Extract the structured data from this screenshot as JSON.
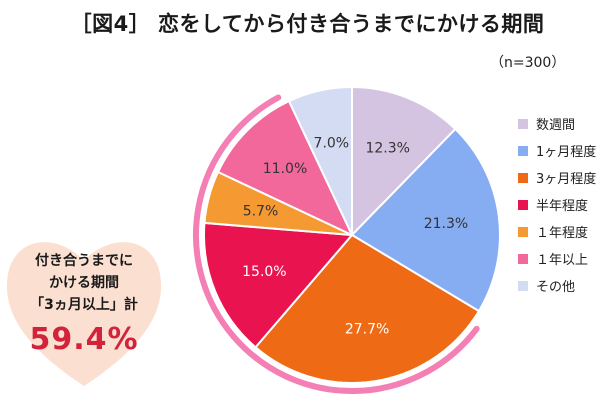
{
  "header": {
    "title": "［図4］ 恋をしてから付き合うまでにかける期間",
    "sample_size": "（n=300）"
  },
  "callout": {
    "line1": "付き合うまでに",
    "line2": "かける期間",
    "line3": "「3ヵ月以上」計",
    "value": "59.4%"
  },
  "chart_data": {
    "type": "pie",
    "title": "［図4］ 恋をしてから付き合うまでにかける期間",
    "start": "12 o'clock",
    "direction": "clockwise",
    "legend_position": "right",
    "categories": [
      "数週間",
      "1ヶ月程度",
      "3ヶ月程度",
      "半年程度",
      "１年程度",
      "１年以上",
      "その他"
    ],
    "values": [
      12.3,
      21.3,
      27.7,
      15.0,
      5.7,
      11.0,
      7.0
    ],
    "labels": [
      "12.3%",
      "21.3%",
      "27.7%",
      "15.0%",
      "5.7%",
      "11.0%",
      "7.0%"
    ],
    "colors": [
      "#d5c3e2",
      "#86acf2",
      "#ef6a14",
      "#e8134f",
      "#f59a32",
      "#f2689a",
      "#d4dcf3"
    ],
    "label_colors": [
      "#333333",
      "#333333",
      "#ffffff",
      "#ffffff",
      "#333333",
      "#333333",
      "#333333"
    ]
  },
  "accent_colors": {
    "ring": "#f47fb4",
    "callout_heart": "#fbe0d2",
    "callout_value": "#d2233a"
  }
}
